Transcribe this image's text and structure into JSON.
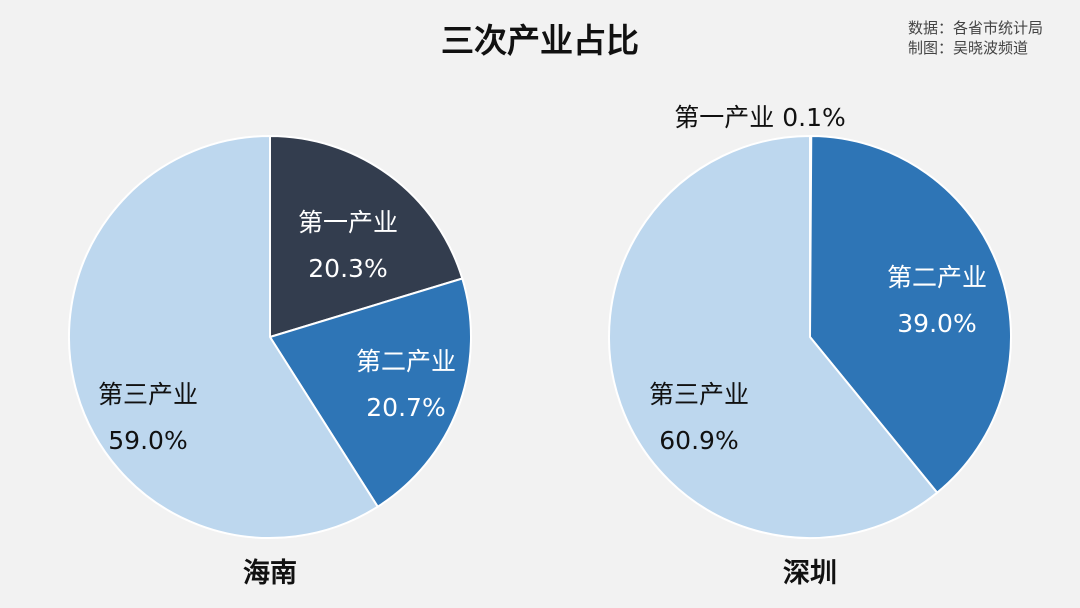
{
  "title": "三次产业占比",
  "source": {
    "data_line": "数据：各省市统计局",
    "made_line": "制图：吴晓波频道"
  },
  "chart_data": [
    {
      "type": "pie",
      "name": "海南",
      "slices": [
        {
          "label": "第一产业",
          "value": 20.3,
          "value_text": "20.3%",
          "color": "#333d4e",
          "label_color": "#ffffff"
        },
        {
          "label": "第二产业",
          "value": 20.7,
          "value_text": "20.7%",
          "color": "#2e75b6",
          "label_color": "#ffffff"
        },
        {
          "label": "第三产业",
          "value": 59.0,
          "value_text": "59.0%",
          "color": "#bdd7ee",
          "label_color": "#111111"
        }
      ]
    },
    {
      "type": "pie",
      "name": "深圳",
      "slices": [
        {
          "label": "第一产业",
          "value": 0.1,
          "value_text": "0.1%",
          "color": "#333d4e",
          "label_color": "#111111"
        },
        {
          "label": "第二产业",
          "value": 39.0,
          "value_text": "39.0%",
          "color": "#2e75b6",
          "label_color": "#ffffff"
        },
        {
          "label": "第三产业",
          "value": 60.9,
          "value_text": "60.9%",
          "color": "#bdd7ee",
          "label_color": "#111111"
        }
      ]
    }
  ]
}
